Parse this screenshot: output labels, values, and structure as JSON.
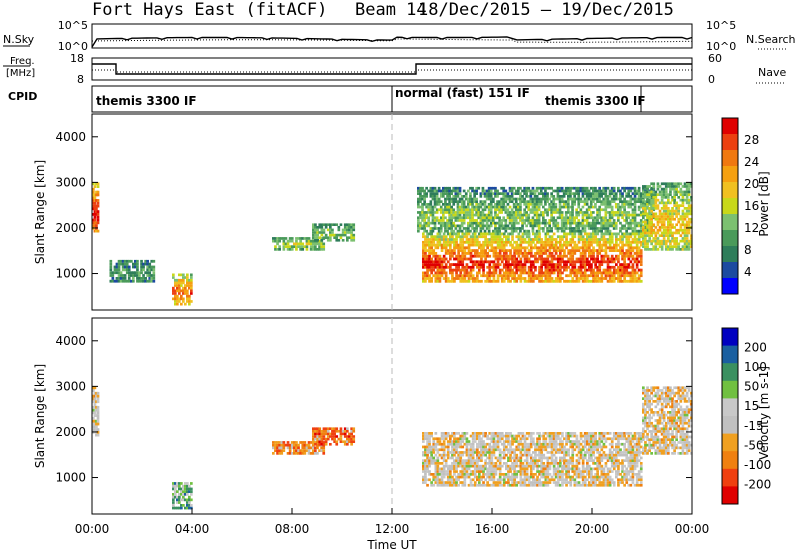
{
  "header": {
    "title": "Fort Hays East (fitACF)",
    "beam": "Beam 14",
    "dates": "18/Dec/2015 – 19/Dec/2015"
  },
  "noise_panel": {
    "left_label": "N.Sky",
    "left_top_tick": "10^5",
    "left_bottom_tick": "10^0",
    "right_top_tick": "10^5",
    "right_bottom_tick": "10^0",
    "right_label": "N.Search"
  },
  "freq_panel": {
    "left_label_1": "Freq.",
    "left_label_2": "[MHz]",
    "left_top_tick": "18",
    "left_bottom_tick": "8",
    "right_top_tick": "60",
    "right_bottom_tick": "0",
    "right_label": "Nave"
  },
  "cpid": {
    "label": "CPID",
    "segments": [
      "themis 3300 IF",
      "normal (fast) 151 IF",
      "themis 3300 IF"
    ]
  },
  "colors": {
    "power": [
      "#0000ff",
      "#1c4aa0",
      "#2e7d5a",
      "#4a9a5a",
      "#7cc070",
      "#c8d81a",
      "#f0c020",
      "#f5a010",
      "#f07810",
      "#ec4010",
      "#e00000"
    ],
    "velocity": [
      "#e00000",
      "#f04010",
      "#f08010",
      "#f0a020",
      "#c0c0c0",
      "#c8c8c8",
      "#70c040",
      "#3a9060",
      "#1a5fa0",
      "#0000c0"
    ]
  },
  "chart_data": [
    {
      "type": "heatmap",
      "title": "",
      "ylabel": "Slant Range [km]",
      "ylim": [
        200,
        4500
      ],
      "y_ticks": [
        "1000",
        "2000",
        "3000",
        "4000"
      ],
      "colorbar_label": "Power [dB]",
      "colorbar_ticks": [
        "28",
        "24",
        "20",
        "16",
        "12",
        "8",
        "4"
      ],
      "echo_regions": [
        {
          "t_start": 0.0,
          "t_end": 0.25,
          "r_min": 1900,
          "r_max": 3000,
          "level": 0.85
        },
        {
          "t_start": 0.7,
          "t_end": 2.5,
          "r_min": 800,
          "r_max": 1300,
          "level": 0.2
        },
        {
          "t_start": 3.2,
          "t_end": 4.0,
          "r_min": 300,
          "r_max": 1000,
          "level": 0.7
        },
        {
          "t_start": 7.2,
          "t_end": 9.3,
          "r_min": 1500,
          "r_max": 1800,
          "level": 0.35
        },
        {
          "t_start": 8.8,
          "t_end": 10.5,
          "r_min": 1700,
          "r_max": 2100,
          "level": 0.3
        },
        {
          "t_start": 13.2,
          "t_end": 22.0,
          "r_min": 800,
          "r_max": 1900,
          "level": 0.8
        },
        {
          "t_start": 13.0,
          "t_end": 22.5,
          "r_min": 1900,
          "r_max": 2900,
          "level": 0.3
        },
        {
          "t_start": 22.0,
          "t_end": 24.0,
          "r_min": 1500,
          "r_max": 3000,
          "level": 0.5
        }
      ]
    },
    {
      "type": "heatmap",
      "title": "",
      "ylabel": "Slant Range [km]",
      "ylim": [
        200,
        4500
      ],
      "y_ticks": [
        "1000",
        "2000",
        "3000",
        "4000"
      ],
      "xlabel": "Time UT",
      "x_ticks": [
        "00:00",
        "04:00",
        "08:00",
        "12:00",
        "16:00",
        "20:00",
        "00:00"
      ],
      "colorbar_label": "Velocity [m s-1]",
      "colorbar_ticks": [
        "200",
        "100",
        "50",
        "15",
        "-15",
        "-50",
        "-100",
        "-200"
      ],
      "echo_regions": [
        {
          "t_start": 0.0,
          "t_end": 0.25,
          "r_min": 1900,
          "r_max": 3000,
          "level": 0.45
        },
        {
          "t_start": 3.2,
          "t_end": 4.0,
          "r_min": 300,
          "r_max": 900,
          "level": 0.65
        },
        {
          "t_start": 7.2,
          "t_end": 9.3,
          "r_min": 1500,
          "r_max": 1800,
          "level": 0.3
        },
        {
          "t_start": 8.8,
          "t_end": 10.5,
          "r_min": 1700,
          "r_max": 2100,
          "level": 0.25
        },
        {
          "t_start": 13.2,
          "t_end": 22.0,
          "r_min": 800,
          "r_max": 2000,
          "level": 0.45
        },
        {
          "t_start": 22.0,
          "t_end": 24.0,
          "r_min": 1500,
          "r_max": 3000,
          "level": 0.45
        }
      ]
    }
  ]
}
